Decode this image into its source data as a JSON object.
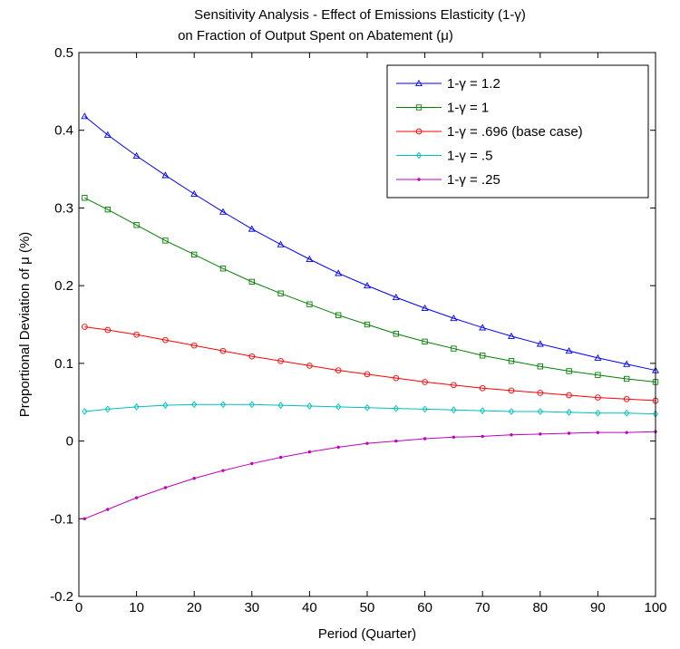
{
  "chart_data": {
    "type": "line",
    "title_line1": "Sensitivity Analysis - Effect of Emissions Elasticity (1-γ)",
    "title_line2": "on Fraction of Output Spent on Abatement (μ)",
    "xlabel": "Period (Quarter)",
    "ylabel": "Proportional Deviation of μ (%)",
    "xlim": [
      0,
      100
    ],
    "ylim": [
      -0.2,
      0.5
    ],
    "xticks": [
      0,
      10,
      20,
      30,
      40,
      50,
      60,
      70,
      80,
      90,
      100
    ],
    "xtick_labels": [
      "0",
      "10",
      "20",
      "30",
      "40",
      "50",
      "60",
      "70",
      "80",
      "90",
      "100"
    ],
    "yticks": [
      -0.2,
      -0.1,
      0,
      0.1,
      0.2,
      0.3,
      0.4,
      0.5
    ],
    "ytick_labels": [
      "-0.2",
      "-0.1",
      "0",
      "0.1",
      "0.2",
      "0.3",
      "0.4",
      "0.5"
    ],
    "grid": false,
    "legend_position": "top-right",
    "x": [
      1,
      5,
      10,
      15,
      20,
      25,
      30,
      35,
      40,
      45,
      50,
      55,
      60,
      65,
      70,
      75,
      80,
      85,
      90,
      95,
      100
    ],
    "series": [
      {
        "name": "1-γ = 1.2",
        "color": "#0000ff",
        "marker": "triangle",
        "values": [
          0.418,
          0.394,
          0.367,
          0.342,
          0.318,
          0.295,
          0.273,
          0.253,
          0.234,
          0.216,
          0.2,
          0.185,
          0.171,
          0.158,
          0.146,
          0.135,
          0.125,
          0.116,
          0.107,
          0.099,
          0.091
        ]
      },
      {
        "name": "1-γ = 1",
        "color": "#008000",
        "marker": "square",
        "values": [
          0.313,
          0.298,
          0.278,
          0.258,
          0.24,
          0.222,
          0.205,
          0.19,
          0.176,
          0.162,
          0.15,
          0.138,
          0.128,
          0.119,
          0.11,
          0.103,
          0.096,
          0.09,
          0.085,
          0.08,
          0.076
        ]
      },
      {
        "name": "1-γ = .696 (base case)",
        "color": "#ff0000",
        "marker": "circle",
        "values": [
          0.147,
          0.143,
          0.137,
          0.13,
          0.123,
          0.116,
          0.109,
          0.103,
          0.097,
          0.091,
          0.086,
          0.081,
          0.076,
          0.072,
          0.068,
          0.065,
          0.062,
          0.059,
          0.056,
          0.054,
          0.052
        ]
      },
      {
        "name": "1-γ = .5",
        "color": "#00bfbf",
        "marker": "diamond",
        "values": [
          0.038,
          0.041,
          0.044,
          0.046,
          0.047,
          0.047,
          0.047,
          0.046,
          0.045,
          0.044,
          0.043,
          0.042,
          0.041,
          0.04,
          0.039,
          0.038,
          0.038,
          0.037,
          0.036,
          0.036,
          0.035
        ]
      },
      {
        "name": "1-γ = .25",
        "color": "#bf00bf",
        "marker": "point",
        "values": [
          -0.1,
          -0.088,
          -0.073,
          -0.06,
          -0.048,
          -0.038,
          -0.029,
          -0.021,
          -0.014,
          -0.008,
          -0.003,
          0.0,
          0.003,
          0.005,
          0.006,
          0.008,
          0.009,
          0.01,
          0.011,
          0.011,
          0.012
        ]
      }
    ]
  }
}
